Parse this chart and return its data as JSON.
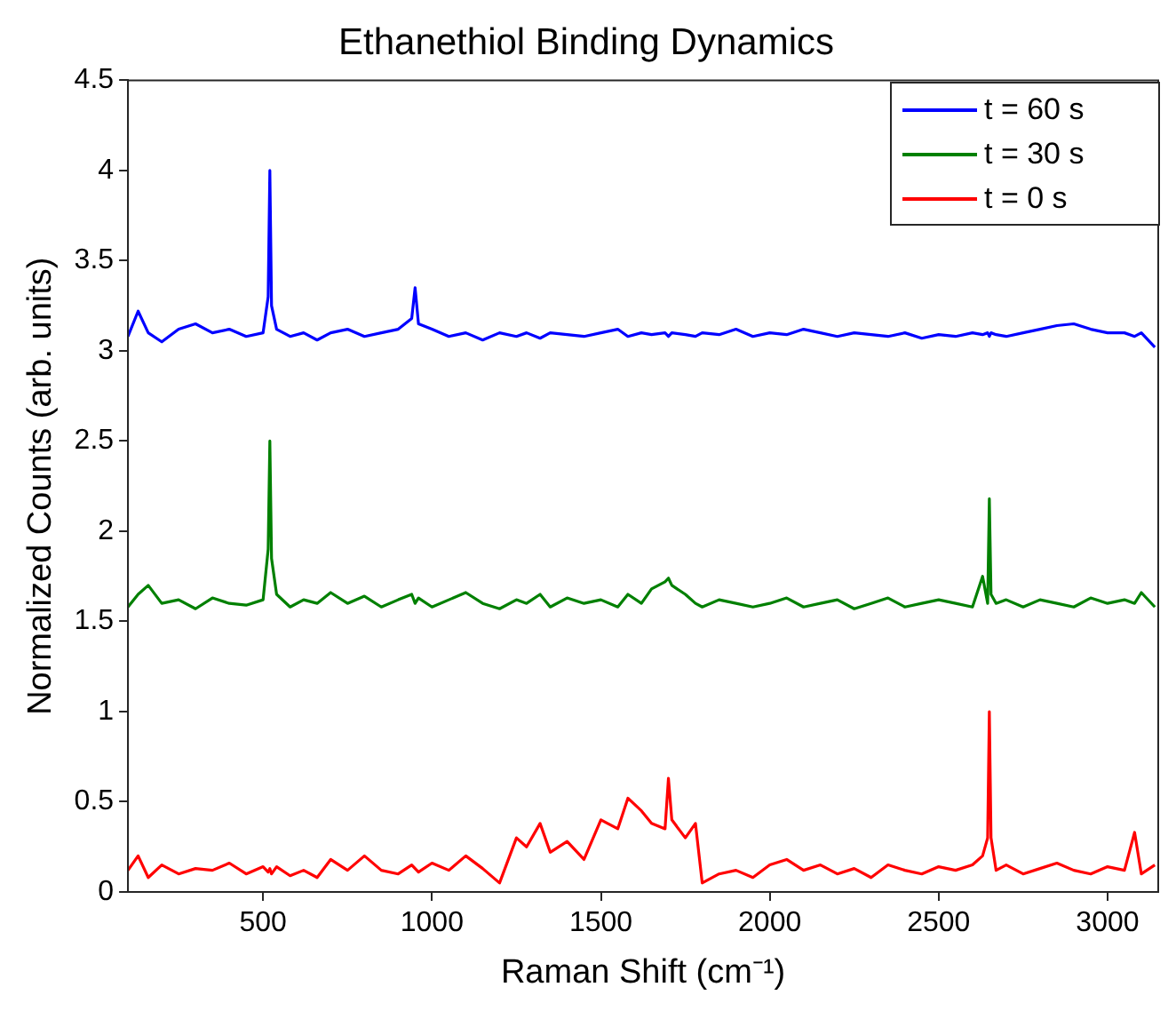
{
  "chart_data": {
    "type": "line",
    "title": "Ethanethiol Binding Dynamics",
    "xlabel": "Raman Shift (cm⁻¹)",
    "ylabel": "Normalized Counts (arb. units)",
    "x": [
      100,
      130,
      160,
      200,
      250,
      300,
      350,
      400,
      450,
      500,
      515,
      520,
      525,
      540,
      580,
      620,
      660,
      700,
      750,
      800,
      850,
      900,
      940,
      950,
      960,
      1000,
      1050,
      1100,
      1150,
      1200,
      1250,
      1280,
      1320,
      1350,
      1400,
      1450,
      1500,
      1550,
      1580,
      1620,
      1650,
      1690,
      1700,
      1710,
      1750,
      1780,
      1800,
      1850,
      1900,
      1950,
      2000,
      2050,
      2100,
      2150,
      2200,
      2250,
      2300,
      2350,
      2400,
      2450,
      2500,
      2550,
      2600,
      2630,
      2645,
      2650,
      2655,
      2670,
      2700,
      2750,
      2800,
      2850,
      2900,
      2950,
      3000,
      3050,
      3080,
      3100,
      3140
    ],
    "series": [
      {
        "name": "t = 60 s",
        "color": "#0000ff",
        "values": [
          3.08,
          3.22,
          3.1,
          3.05,
          3.12,
          3.15,
          3.1,
          3.12,
          3.08,
          3.1,
          3.3,
          4.0,
          3.25,
          3.12,
          3.08,
          3.1,
          3.06,
          3.1,
          3.12,
          3.08,
          3.1,
          3.12,
          3.18,
          3.35,
          3.15,
          3.12,
          3.08,
          3.1,
          3.06,
          3.1,
          3.08,
          3.1,
          3.07,
          3.1,
          3.09,
          3.08,
          3.1,
          3.12,
          3.08,
          3.1,
          3.09,
          3.1,
          3.08,
          3.1,
          3.09,
          3.08,
          3.1,
          3.09,
          3.12,
          3.08,
          3.1,
          3.09,
          3.12,
          3.1,
          3.08,
          3.1,
          3.09,
          3.08,
          3.1,
          3.07,
          3.09,
          3.08,
          3.1,
          3.09,
          3.1,
          3.08,
          3.1,
          3.09,
          3.08,
          3.1,
          3.12,
          3.14,
          3.15,
          3.12,
          3.1,
          3.1,
          3.08,
          3.1,
          3.02
        ]
      },
      {
        "name": "t = 30 s",
        "color": "#008000",
        "values": [
          1.58,
          1.65,
          1.7,
          1.6,
          1.62,
          1.57,
          1.63,
          1.6,
          1.59,
          1.62,
          1.9,
          2.5,
          1.85,
          1.65,
          1.58,
          1.62,
          1.6,
          1.66,
          1.6,
          1.64,
          1.58,
          1.62,
          1.65,
          1.6,
          1.63,
          1.58,
          1.62,
          1.66,
          1.6,
          1.57,
          1.62,
          1.6,
          1.65,
          1.58,
          1.63,
          1.6,
          1.62,
          1.58,
          1.65,
          1.6,
          1.68,
          1.72,
          1.74,
          1.7,
          1.65,
          1.6,
          1.58,
          1.62,
          1.6,
          1.58,
          1.6,
          1.63,
          1.58,
          1.6,
          1.62,
          1.57,
          1.6,
          1.63,
          1.58,
          1.6,
          1.62,
          1.6,
          1.58,
          1.75,
          1.6,
          2.18,
          1.65,
          1.6,
          1.62,
          1.58,
          1.62,
          1.6,
          1.58,
          1.63,
          1.6,
          1.62,
          1.6,
          1.66,
          1.58
        ]
      },
      {
        "name": "t = 0 s",
        "color": "#ff0000",
        "values": [
          0.12,
          0.2,
          0.08,
          0.15,
          0.1,
          0.13,
          0.12,
          0.16,
          0.1,
          0.14,
          0.11,
          0.13,
          0.1,
          0.14,
          0.09,
          0.12,
          0.08,
          0.18,
          0.12,
          0.2,
          0.12,
          0.1,
          0.15,
          0.13,
          0.11,
          0.16,
          0.12,
          0.2,
          0.13,
          0.05,
          0.3,
          0.25,
          0.38,
          0.22,
          0.28,
          0.18,
          0.4,
          0.35,
          0.52,
          0.45,
          0.38,
          0.35,
          0.63,
          0.4,
          0.3,
          0.38,
          0.05,
          0.1,
          0.12,
          0.08,
          0.15,
          0.18,
          0.12,
          0.15,
          0.1,
          0.13,
          0.08,
          0.15,
          0.12,
          0.1,
          0.14,
          0.12,
          0.15,
          0.2,
          0.3,
          1.0,
          0.3,
          0.12,
          0.15,
          0.1,
          0.13,
          0.16,
          0.12,
          0.1,
          0.14,
          0.12,
          0.33,
          0.1,
          0.15
        ]
      }
    ],
    "xlim": [
      100,
      3150
    ],
    "xticks": [
      500,
      1000,
      1500,
      2000,
      2500,
      3000
    ],
    "ylim": [
      0,
      4.5
    ],
    "yticks": [
      0,
      0.5,
      1,
      1.5,
      2,
      2.5,
      3,
      3.5,
      4,
      4.5
    ],
    "grid": false,
    "legend": "top right"
  }
}
